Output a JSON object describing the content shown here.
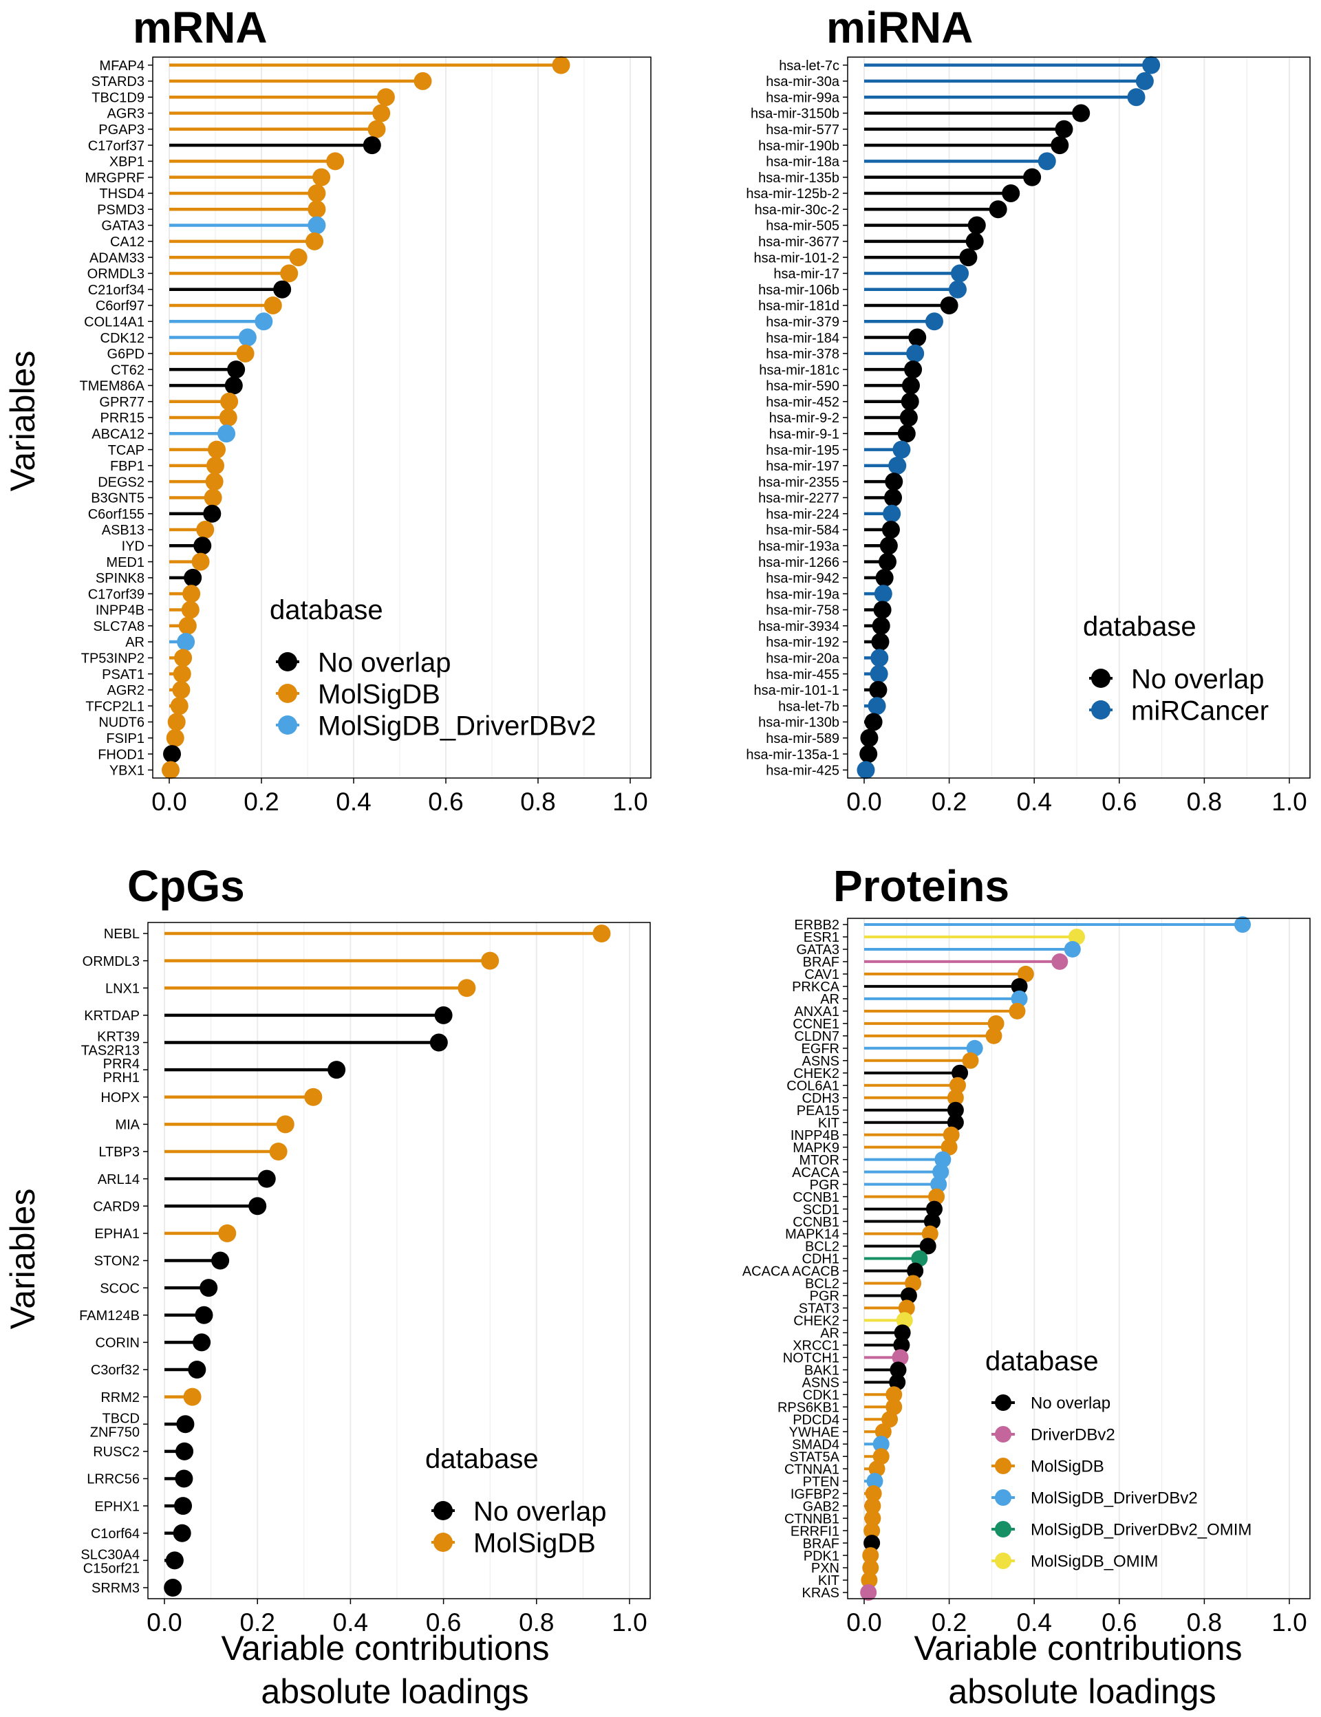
{
  "x_axis_title": [
    "Variable contributions",
    "absolute loadings"
  ],
  "y_axis_title": "Variables",
  "legend_title": "database",
  "colors": {
    "No overlap": "#000000",
    "MolSigDB": "#E08A0C",
    "MolSigDB_DriverDBv2": "#4BA3E3",
    "miRCancer": "#1565A8",
    "DriverDBv2": "#C4659B",
    "MolSigDB_DriverDBv2_OMIM": "#179066",
    "MolSigDB_OMIM": "#F0E040"
  },
  "chart_data": [
    {
      "type": "lollipop",
      "title": "mRNA",
      "xlim": [
        0,
        1
      ],
      "xticks": [
        "0.0",
        "0.2",
        "0.4",
        "0.6",
        "0.8",
        "1.0"
      ],
      "legend": [
        "No overlap",
        "MolSigDB",
        "MolSigDB_DriverDBv2"
      ],
      "categories": [
        "MFAP4",
        "STARD3",
        "TBC1D9",
        "AGR3",
        "PGAP3",
        "C17orf37",
        "XBP1",
        "MRGPRF",
        "THSD4",
        "PSMD3",
        "GATA3",
        "CA12",
        "ADAM33",
        "ORMDL3",
        "C21orf34",
        "C6orf97",
        "COL14A1",
        "CDK12",
        "G6PD",
        "CT62",
        "TMEM86A",
        "GPR77",
        "PRR15",
        "ABCA12",
        "TCAP",
        "FBP1",
        "DEGS2",
        "B3GNT5",
        "C6orf155",
        "ASB13",
        "IYD",
        "MED1",
        "SPINK8",
        "C17orf39",
        "INPP4B",
        "SLC7A8",
        "AR",
        "TP53INP2",
        "PSAT1",
        "AGR2",
        "TFCP2L1",
        "NUDT6",
        "FSIP1",
        "FHOD1",
        "YBX1"
      ],
      "values": [
        0.85,
        0.55,
        0.47,
        0.46,
        0.45,
        0.44,
        0.36,
        0.33,
        0.32,
        0.32,
        0.32,
        0.315,
        0.28,
        0.26,
        0.245,
        0.225,
        0.205,
        0.17,
        0.165,
        0.145,
        0.14,
        0.13,
        0.128,
        0.124,
        0.103,
        0.1,
        0.098,
        0.095,
        0.093,
        0.078,
        0.072,
        0.068,
        0.051,
        0.048,
        0.046,
        0.04,
        0.036,
        0.03,
        0.028,
        0.026,
        0.022,
        0.016,
        0.013,
        0.006,
        0.003
      ],
      "groups": [
        "MolSigDB",
        "MolSigDB",
        "MolSigDB",
        "MolSigDB",
        "MolSigDB",
        "No overlap",
        "MolSigDB",
        "MolSigDB",
        "MolSigDB",
        "MolSigDB",
        "MolSigDB_DriverDBv2",
        "MolSigDB",
        "MolSigDB",
        "MolSigDB",
        "No overlap",
        "MolSigDB",
        "MolSigDB_DriverDBv2",
        "MolSigDB_DriverDBv2",
        "MolSigDB",
        "No overlap",
        "No overlap",
        "MolSigDB",
        "MolSigDB",
        "MolSigDB_DriverDBv2",
        "MolSigDB",
        "MolSigDB",
        "MolSigDB",
        "MolSigDB",
        "No overlap",
        "MolSigDB",
        "No overlap",
        "MolSigDB",
        "No overlap",
        "MolSigDB",
        "MolSigDB",
        "MolSigDB",
        "MolSigDB_DriverDBv2",
        "MolSigDB",
        "MolSigDB",
        "MolSigDB",
        "MolSigDB",
        "MolSigDB",
        "MolSigDB",
        "No overlap",
        "MolSigDB"
      ]
    },
    {
      "type": "lollipop",
      "title": "miRNA",
      "xlim": [
        0,
        1
      ],
      "xticks": [
        "0.0",
        "0.2",
        "0.4",
        "0.6",
        "0.8",
        "1.0"
      ],
      "legend": [
        "No overlap",
        "miRCancer"
      ],
      "categories": [
        "hsa-let-7c",
        "hsa-mir-30a",
        "hsa-mir-99a",
        "hsa-mir-3150b",
        "hsa-mir-577",
        "hsa-mir-190b",
        "hsa-mir-18a",
        "hsa-mir-135b",
        "hsa-mir-125b-2",
        "hsa-mir-30c-2",
        "hsa-mir-505",
        "hsa-mir-3677",
        "hsa-mir-101-2",
        "hsa-mir-17",
        "hsa-mir-106b",
        "hsa-mir-181d",
        "hsa-mir-379",
        "hsa-mir-184",
        "hsa-mir-378",
        "hsa-mir-181c",
        "hsa-mir-590",
        "hsa-mir-452",
        "hsa-mir-9-2",
        "hsa-mir-9-1",
        "hsa-mir-195",
        "hsa-mir-197",
        "hsa-mir-2355",
        "hsa-mir-2277",
        "hsa-mir-224",
        "hsa-mir-584",
        "hsa-mir-193a",
        "hsa-mir-1266",
        "hsa-mir-942",
        "hsa-mir-19a",
        "hsa-mir-758",
        "hsa-mir-3934",
        "hsa-mir-192",
        "hsa-mir-20a",
        "hsa-mir-455",
        "hsa-mir-101-1",
        "hsa-let-7b",
        "hsa-mir-130b",
        "hsa-mir-589",
        "hsa-mir-135a-1",
        "hsa-mir-425"
      ],
      "values": [
        0.675,
        0.66,
        0.64,
        0.51,
        0.47,
        0.46,
        0.43,
        0.395,
        0.345,
        0.315,
        0.265,
        0.26,
        0.245,
        0.225,
        0.22,
        0.2,
        0.165,
        0.125,
        0.12,
        0.115,
        0.11,
        0.108,
        0.105,
        0.1,
        0.088,
        0.078,
        0.07,
        0.068,
        0.065,
        0.063,
        0.058,
        0.055,
        0.048,
        0.045,
        0.043,
        0.04,
        0.038,
        0.036,
        0.035,
        0.033,
        0.03,
        0.022,
        0.012,
        0.01,
        0.004
      ],
      "groups": [
        "miRCancer",
        "miRCancer",
        "miRCancer",
        "No overlap",
        "No overlap",
        "No overlap",
        "miRCancer",
        "No overlap",
        "No overlap",
        "No overlap",
        "No overlap",
        "No overlap",
        "No overlap",
        "miRCancer",
        "miRCancer",
        "No overlap",
        "miRCancer",
        "No overlap",
        "miRCancer",
        "No overlap",
        "No overlap",
        "No overlap",
        "No overlap",
        "No overlap",
        "miRCancer",
        "miRCancer",
        "No overlap",
        "No overlap",
        "miRCancer",
        "No overlap",
        "No overlap",
        "No overlap",
        "No overlap",
        "miRCancer",
        "No overlap",
        "No overlap",
        "No overlap",
        "miRCancer",
        "miRCancer",
        "No overlap",
        "miRCancer",
        "No overlap",
        "No overlap",
        "No overlap",
        "miRCancer"
      ]
    },
    {
      "type": "lollipop",
      "title": "CpGs",
      "xlim": [
        0,
        1
      ],
      "xticks": [
        "0.0",
        "0.2",
        "0.4",
        "0.6",
        "0.8",
        "1.0"
      ],
      "legend": [
        "No overlap",
        "MolSigDB"
      ],
      "categories": [
        "NEBL",
        "ORMDL3",
        "LNX1",
        "KRTDAP",
        "KRT39\nTAS2R13",
        "PRR4\nPRH1",
        "HOPX",
        "MIA",
        "LTBP3",
        "ARL14",
        "CARD9",
        "EPHA1",
        "STON2",
        "SCOC",
        "FAM124B",
        "CORIN",
        "C3orf32",
        "RRM2",
        "TBCD\nZNF750",
        "RUSC2",
        "LRRC56",
        "EPHX1",
        "C1orf64",
        "SLC30A4\nC15orf21",
        "SRRM3"
      ],
      "values": [
        0.94,
        0.7,
        0.65,
        0.6,
        0.59,
        0.37,
        0.32,
        0.26,
        0.245,
        0.22,
        0.2,
        0.135,
        0.12,
        0.095,
        0.085,
        0.08,
        0.07,
        0.06,
        0.045,
        0.043,
        0.042,
        0.04,
        0.038,
        0.022,
        0.018
      ],
      "groups": [
        "MolSigDB",
        "MolSigDB",
        "MolSigDB",
        "No overlap",
        "No overlap",
        "No overlap",
        "MolSigDB",
        "MolSigDB",
        "MolSigDB",
        "No overlap",
        "No overlap",
        "MolSigDB",
        "No overlap",
        "No overlap",
        "No overlap",
        "No overlap",
        "No overlap",
        "MolSigDB",
        "No overlap",
        "No overlap",
        "No overlap",
        "No overlap",
        "No overlap",
        "No overlap",
        "No overlap"
      ]
    },
    {
      "type": "lollipop",
      "title": "Proteins",
      "xlim": [
        0,
        1
      ],
      "xticks": [
        "0.0",
        "0.2",
        "0.4",
        "0.6",
        "0.8",
        "1.0"
      ],
      "legend": [
        "No overlap",
        "DriverDBv2",
        "MolSigDB",
        "MolSigDB_DriverDBv2",
        "MolSigDB_DriverDBv2_OMIM",
        "MolSigDB_OMIM"
      ],
      "categories": [
        "ERBB2",
        "ESR1",
        "GATA3",
        "BRAF",
        "CAV1",
        "PRKCA",
        "AR",
        "ANXA1",
        "CCNE1",
        "CLDN7",
        "EGFR",
        "ASNS",
        "CHEK2",
        "COL6A1",
        "CDH3",
        "PEA15",
        "KIT",
        "INPP4B",
        "MAPK9",
        "MTOR",
        "ACACA",
        "PGR",
        "CCNB1",
        "SCD1",
        "CCNB1",
        "MAPK14",
        "BCL2",
        "CDH1",
        "ACACA ACACB",
        "BCL2",
        "PGR",
        "STAT3",
        "CHEK2",
        "AR",
        "XRCC1",
        "NOTCH1",
        "BAK1",
        "ASNS",
        "CDK1",
        "RPS6KB1",
        "PDCD4",
        "YWHAE",
        "SMAD4",
        "STAT5A",
        "CTNNA1",
        "PTEN",
        "IGFBP2",
        "GAB2",
        "CTNNB1",
        "ERRFI1",
        "BRAF",
        "PDK1",
        "PXN",
        "KIT",
        "KRAS"
      ],
      "values": [
        0.89,
        0.5,
        0.49,
        0.46,
        0.38,
        0.365,
        0.365,
        0.36,
        0.31,
        0.305,
        0.26,
        0.25,
        0.225,
        0.22,
        0.215,
        0.215,
        0.215,
        0.205,
        0.2,
        0.185,
        0.18,
        0.175,
        0.17,
        0.165,
        0.16,
        0.155,
        0.15,
        0.13,
        0.12,
        0.115,
        0.105,
        0.1,
        0.095,
        0.09,
        0.088,
        0.085,
        0.08,
        0.078,
        0.07,
        0.07,
        0.06,
        0.045,
        0.04,
        0.04,
        0.03,
        0.025,
        0.022,
        0.02,
        0.02,
        0.018,
        0.018,
        0.015,
        0.015,
        0.012,
        0.01
      ],
      "groups": [
        "MolSigDB_DriverDBv2",
        "MolSigDB_OMIM",
        "MolSigDB_DriverDBv2",
        "DriverDBv2",
        "MolSigDB",
        "No overlap",
        "MolSigDB_DriverDBv2",
        "MolSigDB",
        "MolSigDB",
        "MolSigDB",
        "MolSigDB_DriverDBv2",
        "MolSigDB",
        "No overlap",
        "MolSigDB",
        "MolSigDB",
        "No overlap",
        "No overlap",
        "MolSigDB",
        "MolSigDB",
        "MolSigDB_DriverDBv2",
        "MolSigDB_DriverDBv2",
        "MolSigDB_DriverDBv2",
        "MolSigDB",
        "No overlap",
        "No overlap",
        "MolSigDB",
        "No overlap",
        "MolSigDB_DriverDBv2_OMIM",
        "No overlap",
        "MolSigDB",
        "No overlap",
        "MolSigDB",
        "MolSigDB_OMIM",
        "No overlap",
        "No overlap",
        "DriverDBv2",
        "No overlap",
        "No overlap",
        "MolSigDB",
        "MolSigDB",
        "MolSigDB",
        "MolSigDB",
        "MolSigDB_DriverDBv2",
        "MolSigDB",
        "MolSigDB",
        "MolSigDB_DriverDBv2",
        "MolSigDB",
        "MolSigDB",
        "MolSigDB",
        "MolSigDB",
        "No overlap",
        "MolSigDB",
        "MolSigDB",
        "MolSigDB",
        "DriverDBv2"
      ]
    }
  ]
}
